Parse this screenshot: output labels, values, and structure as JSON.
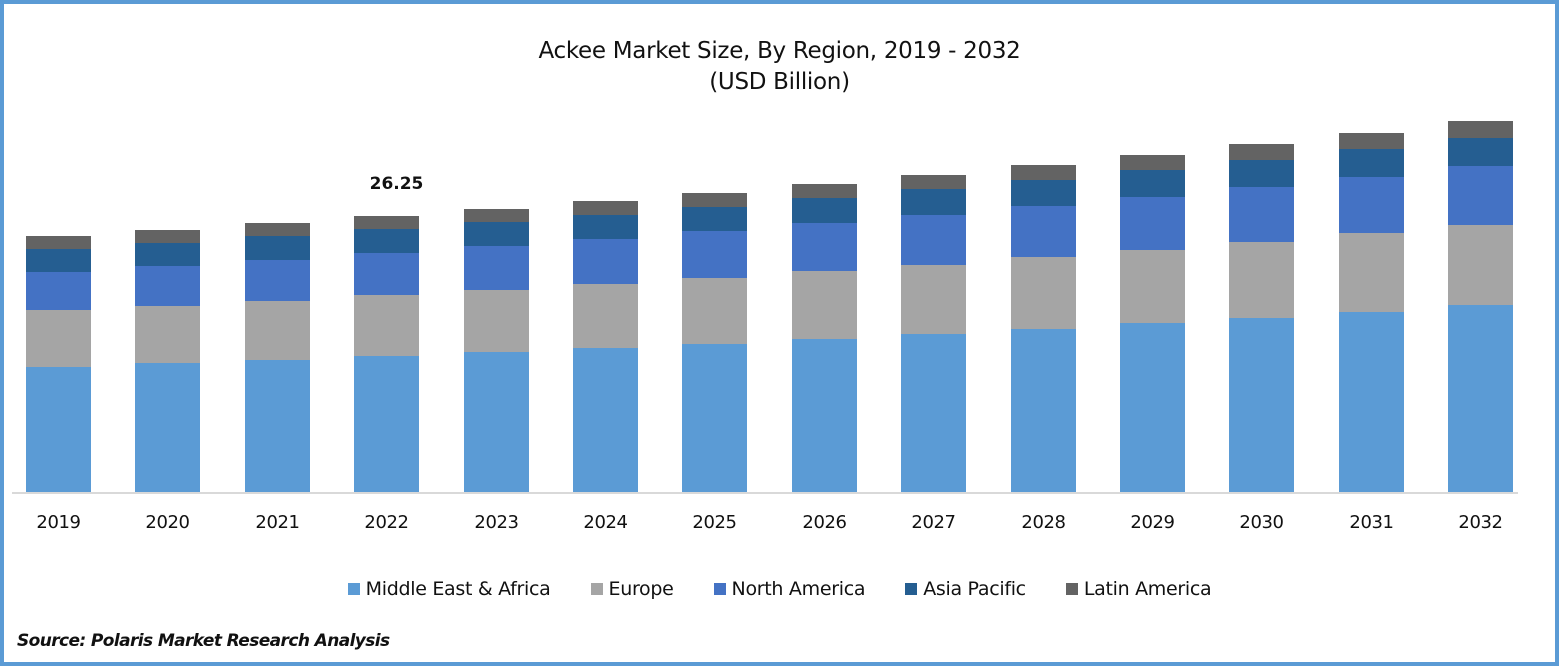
{
  "chart_data": {
    "type": "bar",
    "stacked": true,
    "title": "Ackee Market Size, By Region, 2019 - 2032",
    "subtitle": "(USD Billion)",
    "xlabel": "",
    "ylabel": "",
    "categories": [
      "2019",
      "2020",
      "2021",
      "2022",
      "2023",
      "2024",
      "2025",
      "2026",
      "2027",
      "2028",
      "2029",
      "2030",
      "2031",
      "2032"
    ],
    "series": [
      {
        "name": "Middle East & Africa",
        "color": "#5B9BD5",
        "values": [
          11.89,
          12.27,
          12.55,
          12.93,
          13.32,
          13.7,
          14.08,
          14.55,
          15.03,
          15.5,
          16.07,
          16.55,
          17.12,
          17.79
        ]
      },
      {
        "name": "Europe",
        "color": "#A5A5A5",
        "values": [
          5.42,
          5.42,
          5.61,
          5.8,
          5.9,
          6.09,
          6.28,
          6.47,
          6.56,
          6.85,
          6.94,
          7.23,
          7.51,
          7.61
        ]
      },
      {
        "name": "North America",
        "color": "#4472C4",
        "values": [
          3.61,
          3.8,
          3.9,
          3.99,
          4.18,
          4.28,
          4.47,
          4.57,
          4.76,
          4.85,
          5.04,
          5.23,
          5.33,
          5.61
        ]
      },
      {
        "name": "Asia Pacific",
        "color": "#255E91",
        "values": [
          2.19,
          2.19,
          2.28,
          2.28,
          2.28,
          2.28,
          2.28,
          2.38,
          2.47,
          2.47,
          2.57,
          2.57,
          2.66,
          2.66
        ]
      },
      {
        "name": "Latin America",
        "color": "#636363",
        "values": [
          1.24,
          1.24,
          1.24,
          1.24,
          1.24,
          1.33,
          1.33,
          1.33,
          1.33,
          1.43,
          1.43,
          1.52,
          1.52,
          1.62
        ]
      }
    ],
    "totals": [
      24.35,
      24.92,
      25.58,
      26.25,
      26.92,
      27.68,
      28.44,
      29.3,
      30.15,
      31.1,
      32.05,
      33.1,
      34.14,
      35.29
    ],
    "annotations": [
      {
        "category": "2022",
        "text": "26.25"
      }
    ],
    "legend_position": "bottom",
    "grid": false,
    "y_axis_visible": false,
    "ylim": [
      0,
      38
    ]
  },
  "header": {
    "title": "Ackee Market Size, By Region, 2019 - 2032",
    "subtitle": "(USD Billion)"
  },
  "legend": [
    {
      "label": "Middle East & Africa",
      "color": "#5B9BD5"
    },
    {
      "label": "Europe",
      "color": "#A5A5A5"
    },
    {
      "label": "North America",
      "color": "#4472C4"
    },
    {
      "label": "Asia Pacific",
      "color": "#255E91"
    },
    {
      "label": "Latin America",
      "color": "#636363"
    }
  ],
  "annotation_label": "26.25",
  "footer": {
    "source": "Source: Polaris Market Research Analysis"
  },
  "colors": {
    "frame_border": "#5B9BD5",
    "baseline": "#D9D9D9"
  }
}
